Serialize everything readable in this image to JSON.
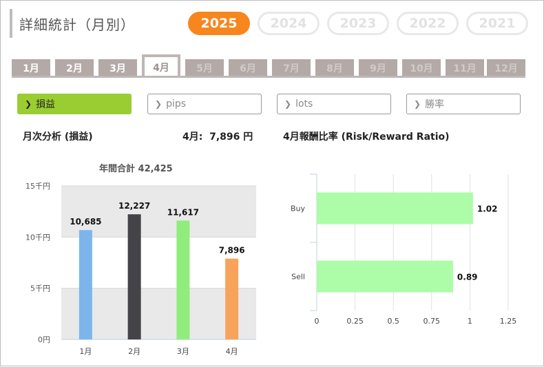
{
  "header": {
    "title": "詳細統計（月別）"
  },
  "years": [
    {
      "label": "2025",
      "active": true
    },
    {
      "label": "2024",
      "active": false
    },
    {
      "label": "2023",
      "active": false
    },
    {
      "label": "2022",
      "active": false
    },
    {
      "label": "2021",
      "active": false
    }
  ],
  "months": [
    {
      "label": "1月",
      "state": "enabled"
    },
    {
      "label": "2月",
      "state": "enabled"
    },
    {
      "label": "3月",
      "state": "enabled"
    },
    {
      "label": "4月",
      "state": "active"
    },
    {
      "label": "5月",
      "state": "inactive"
    },
    {
      "label": "6月",
      "state": "inactive"
    },
    {
      "label": "7月",
      "state": "inactive"
    },
    {
      "label": "8月",
      "state": "inactive"
    },
    {
      "label": "9月",
      "state": "inactive"
    },
    {
      "label": "10月",
      "state": "inactive"
    },
    {
      "label": "11月",
      "state": "inactive"
    },
    {
      "label": "12月",
      "state": "inactive"
    }
  ],
  "metrics": [
    {
      "label": "損益",
      "active": true
    },
    {
      "label": "pips",
      "active": false
    },
    {
      "label": "lots",
      "active": false
    },
    {
      "label": "勝率",
      "active": false
    }
  ],
  "monthly_section": {
    "title": "月次分析 (損益)",
    "current_label": "4月:  7,896 円",
    "annual_total": "年間合計 42,425"
  },
  "ratio_section": {
    "title": "4月報酬比率 (Risk/Reward Ratio)"
  },
  "colors": {
    "accent": "#f7861e",
    "metric_active": "#9acd32",
    "ratio_bar": "#adfca8"
  },
  "chart_data": [
    {
      "type": "bar",
      "title": "",
      "categories": [
        "1月",
        "2月",
        "3月",
        "4月"
      ],
      "values": [
        10685,
        12227,
        11617,
        7896
      ],
      "value_labels": [
        "10,685",
        "12,227",
        "11,617",
        "7,896"
      ],
      "bar_colors": [
        "#7cb5ec",
        "#434348",
        "#90ed7d",
        "#f7a35c"
      ],
      "y_ticks": [
        {
          "value": 0,
          "label": "0円"
        },
        {
          "value": 5000,
          "label": "5千円"
        },
        {
          "value": 10000,
          "label": "10千円"
        },
        {
          "value": 15000,
          "label": "15千円"
        }
      ],
      "ylim": [
        0,
        15000
      ],
      "grid": true
    },
    {
      "type": "bar",
      "orientation": "horizontal",
      "categories": [
        "Buy",
        "Sell"
      ],
      "values": [
        1.02,
        0.89
      ],
      "value_labels": [
        "1.02",
        "0.89"
      ],
      "x_ticks": [
        "0",
        "0.25",
        "0.5",
        "0.75",
        "1",
        "1.25"
      ],
      "xlim": [
        0,
        1.25
      ],
      "grid": true
    }
  ]
}
